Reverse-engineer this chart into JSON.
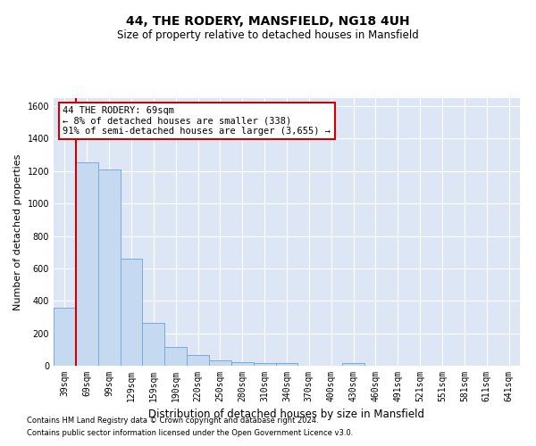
{
  "title": "44, THE RODERY, MANSFIELD, NG18 4UH",
  "subtitle": "Size of property relative to detached houses in Mansfield",
  "xlabel": "Distribution of detached houses by size in Mansfield",
  "ylabel": "Number of detached properties",
  "footnote1": "Contains HM Land Registry data © Crown copyright and database right 2024.",
  "footnote2": "Contains public sector information licensed under the Open Government Licence v3.0.",
  "annotation_line1": "44 THE RODERY: 69sqm",
  "annotation_line2": "← 8% of detached houses are smaller (338)",
  "annotation_line3": "91% of semi-detached houses are larger (3,655) →",
  "bar_heights": [
    360,
    1255,
    1210,
    660,
    265,
    115,
    65,
    35,
    20,
    15,
    15,
    0,
    0,
    15,
    0,
    0,
    0,
    0,
    0,
    0,
    0
  ],
  "categories": [
    "39sqm",
    "69sqm",
    "99sqm",
    "129sqm",
    "159sqm",
    "190sqm",
    "220sqm",
    "250sqm",
    "280sqm",
    "310sqm",
    "340sqm",
    "370sqm",
    "400sqm",
    "430sqm",
    "460sqm",
    "491sqm",
    "521sqm",
    "551sqm",
    "581sqm",
    "611sqm",
    "641sqm"
  ],
  "bar_color": "#c5d9f1",
  "bar_edgecolor": "#7da9d8",
  "red_line_color": "#cc0000",
  "background_color": "#dce6f5",
  "plot_bg_color": "#dce6f5",
  "grid_color": "#ffffff",
  "ylim": [
    0,
    1650
  ],
  "yticks": [
    0,
    200,
    400,
    600,
    800,
    1000,
    1200,
    1400,
    1600
  ],
  "title_fontsize": 10,
  "subtitle_fontsize": 8.5,
  "ylabel_fontsize": 8,
  "xlabel_fontsize": 8.5,
  "tick_fontsize": 7,
  "footnote_fontsize": 6,
  "annot_fontsize": 7.5
}
